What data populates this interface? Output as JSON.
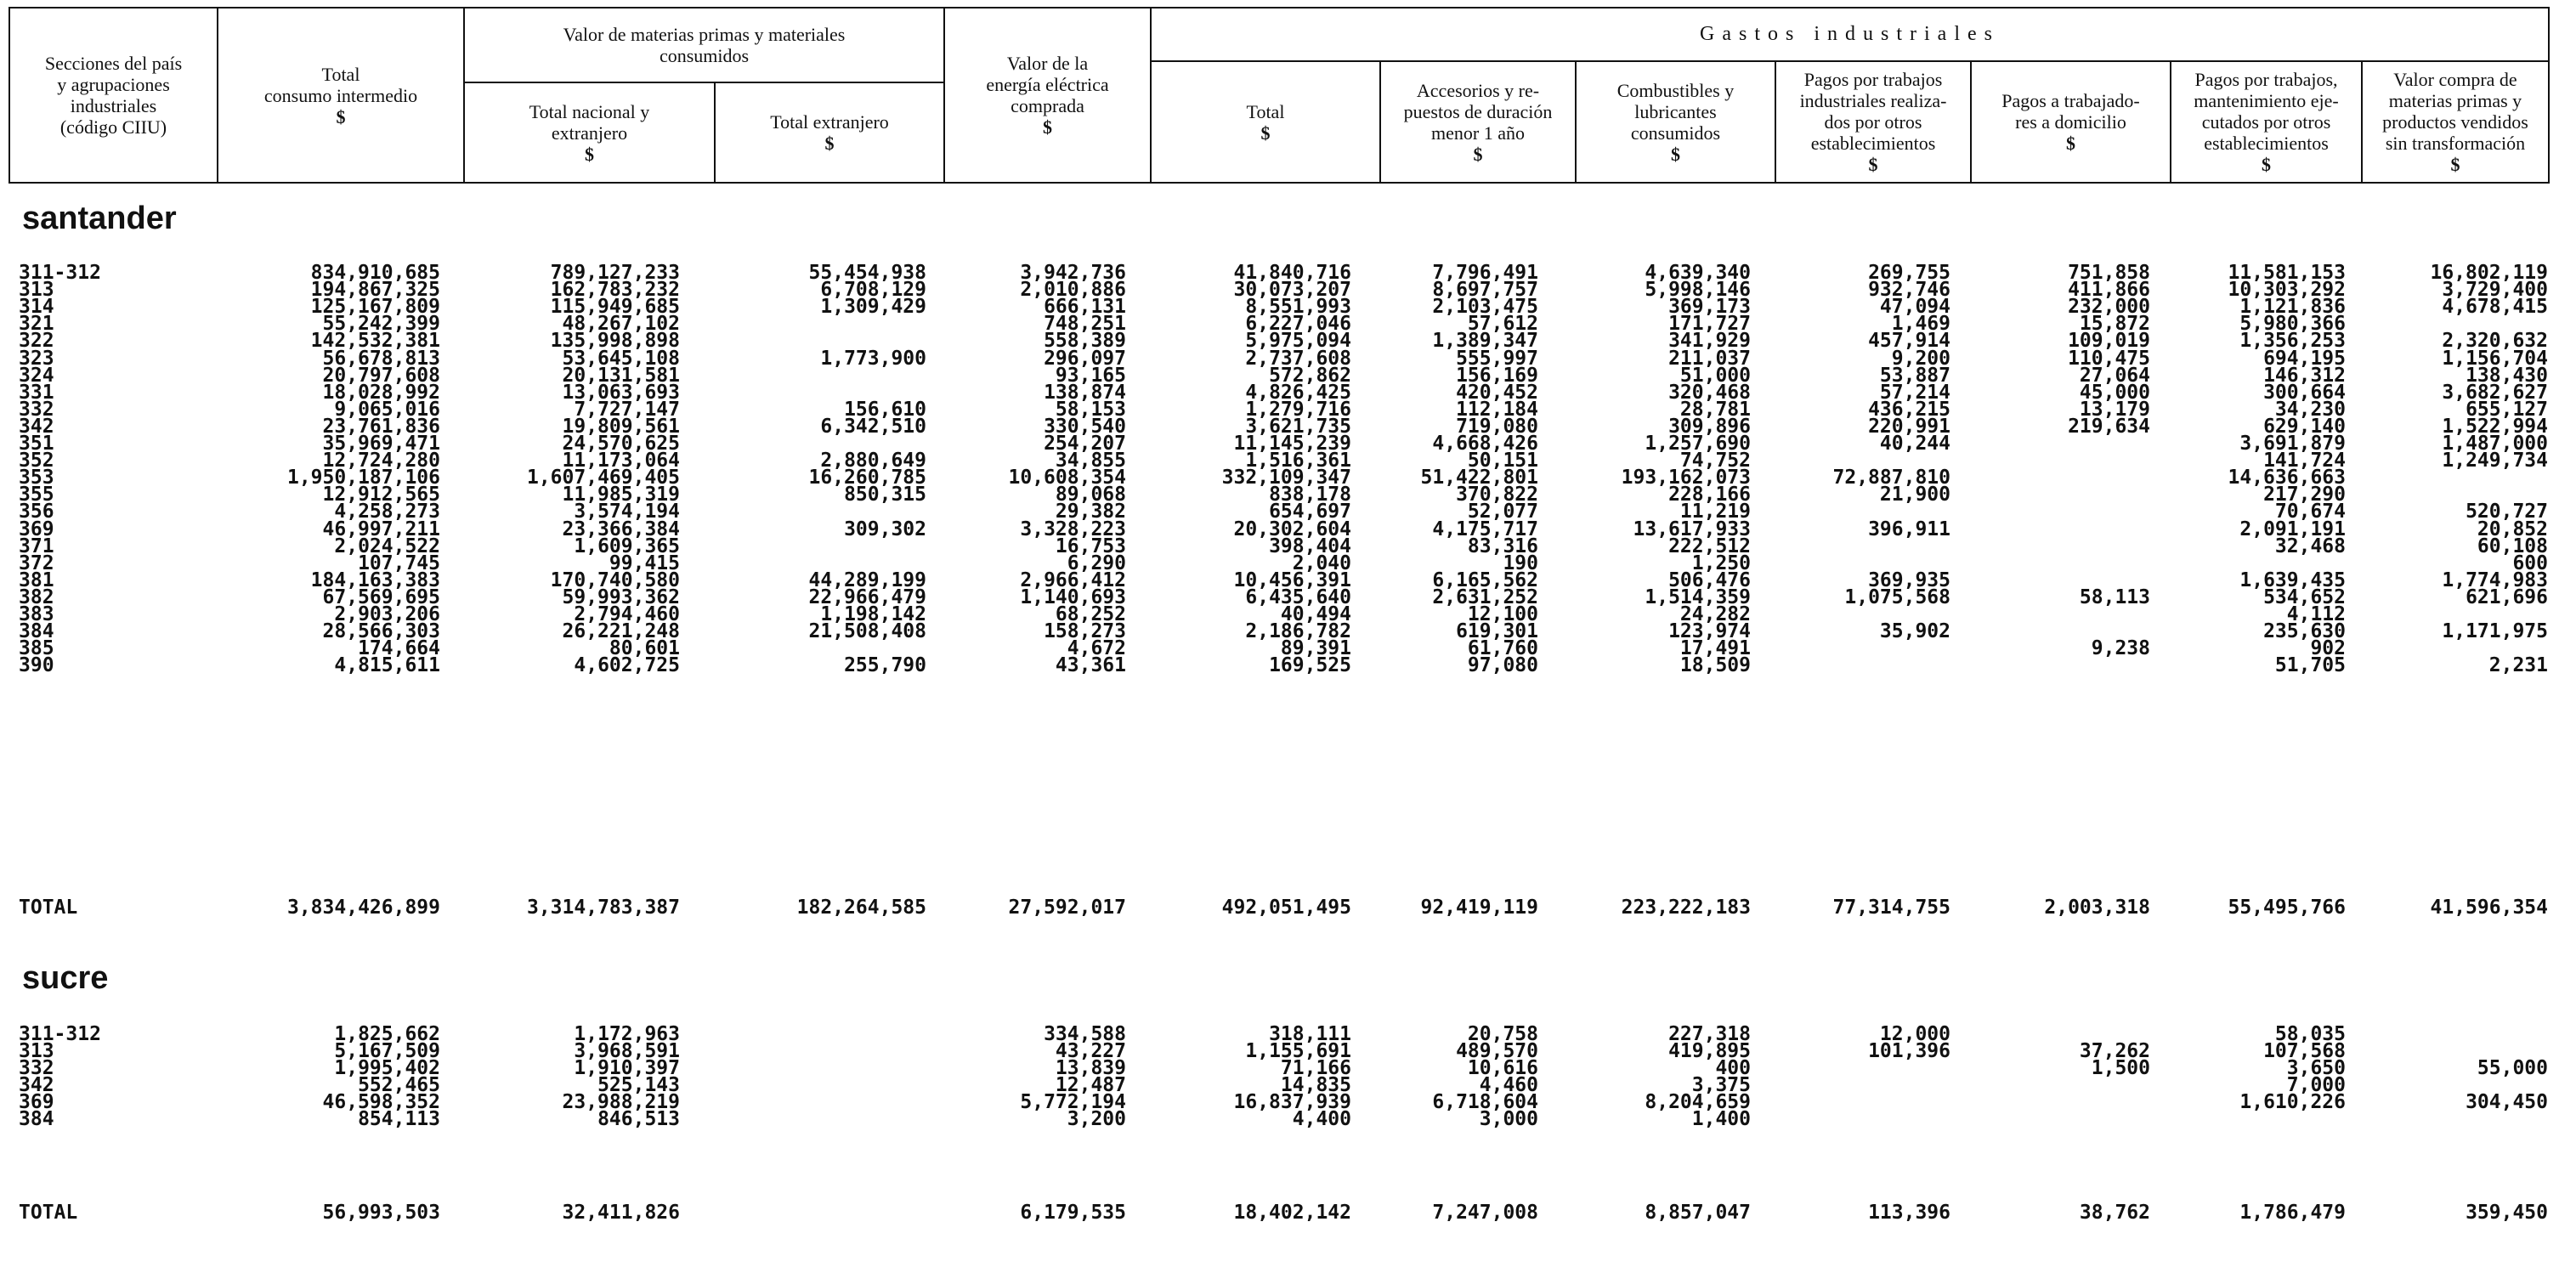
{
  "header": {
    "col_seccion": "Secciones del país\ny agrupaciones\nindustriales\n(código CIIU)",
    "col_total_consumo": "Total\nconsumo intermedio",
    "col_total_consumo_unit": "$",
    "group_materias": "Valor de materias primas y materiales\nconsumidos",
    "col_nacional": "Total nacional y\nextranjero",
    "col_nacional_unit": "$",
    "col_extranjero": "Total extranjero",
    "col_extranjero_unit": "$",
    "col_energia": "Valor de la\nenergía eléctrica\ncomprada",
    "col_energia_unit": "$",
    "group_gastos": "Gastos industriales",
    "col_g_total": "Total",
    "col_g_total_unit": "$",
    "col_accesorios": "Accesorios y re-\npuestos de duración\nmenor 1 año",
    "col_accesorios_unit": "$",
    "col_combustibles": "Combustibles y\nlubricantes\nconsumidos",
    "col_combustibles_unit": "$",
    "col_pagos_trabajos": "Pagos por trabajos\nindustriales realiza-\ndos por otros\nestablecimientos",
    "col_pagos_trabajos_unit": "$",
    "col_pagos_domicilio": "Pagos a trabajado-\nres a domicilio",
    "col_pagos_domicilio_unit": "$",
    "col_pagos_mant": "Pagos por trabajos,\nmantenimiento eje-\ncutados por otros\nestablecimientos",
    "col_pagos_mant_unit": "$",
    "col_valor_compra": "Valor compra de\nmaterias primas y\nproductos vendidos\nsin transformación",
    "col_valor_compra_unit": "$"
  },
  "sections": [
    {
      "name": "santander",
      "rows": [
        {
          "code": "311-312",
          "c1": "834,910,685",
          "c2": "789,127,233",
          "c3": "55,454,938",
          "c4": "3,942,736",
          "c5": "41,840,716",
          "c6": "7,796,491",
          "c7": "4,639,340",
          "c8": "269,755",
          "c9": "751,858",
          "c10": "11,581,153",
          "c11": "16,802,119"
        },
        {
          "code": "313",
          "c1": "194,867,325",
          "c2": "162,783,232",
          "c3": "6,708,129",
          "c4": "2,010,886",
          "c5": "30,073,207",
          "c6": "8,697,757",
          "c7": "5,998,146",
          "c8": "932,746",
          "c9": "411,866",
          "c10": "10,303,292",
          "c11": "3,729,400"
        },
        {
          "code": "314",
          "c1": "125,167,809",
          "c2": "115,949,685",
          "c3": "1,309,429",
          "c4": "666,131",
          "c5": "8,551,993",
          "c6": "2,103,475",
          "c7": "369,173",
          "c8": "47,094",
          "c9": "232,000",
          "c10": "1,121,836",
          "c11": "4,678,415"
        },
        {
          "code": "321",
          "c1": "55,242,399",
          "c2": "48,267,102",
          "c3": "",
          "c4": "748,251",
          "c5": "6,227,046",
          "c6": "57,612",
          "c7": "171,727",
          "c8": "1,469",
          "c9": "15,872",
          "c10": "5,980,366",
          "c11": ""
        },
        {
          "code": "322",
          "c1": "142,532,381",
          "c2": "135,998,898",
          "c3": "",
          "c4": "558,389",
          "c5": "5,975,094",
          "c6": "1,389,347",
          "c7": "341,929",
          "c8": "457,914",
          "c9": "109,019",
          "c10": "1,356,253",
          "c11": "2,320,632"
        },
        {
          "code": "323",
          "c1": "56,678,813",
          "c2": "53,645,108",
          "c3": "1,773,900",
          "c4": "296,097",
          "c5": "2,737,608",
          "c6": "555,997",
          "c7": "211,037",
          "c8": "9,200",
          "c9": "110,475",
          "c10": "694,195",
          "c11": "1,156,704"
        },
        {
          "code": "324",
          "c1": "20,797,608",
          "c2": "20,131,581",
          "c3": "",
          "c4": "93,165",
          "c5": "572,862",
          "c6": "156,169",
          "c7": "51,000",
          "c8": "53,887",
          "c9": "27,064",
          "c10": "146,312",
          "c11": "138,430"
        },
        {
          "code": "331",
          "c1": "18,028,992",
          "c2": "13,063,693",
          "c3": "",
          "c4": "138,874",
          "c5": "4,826,425",
          "c6": "420,452",
          "c7": "320,468",
          "c8": "57,214",
          "c9": "45,000",
          "c10": "300,664",
          "c11": "3,682,627"
        },
        {
          "code": "332",
          "c1": "9,065,016",
          "c2": "7,727,147",
          "c3": "156,610",
          "c4": "58,153",
          "c5": "1,279,716",
          "c6": "112,184",
          "c7": "28,781",
          "c8": "436,215",
          "c9": "13,179",
          "c10": "34,230",
          "c11": "655,127"
        },
        {
          "code": "342",
          "c1": "23,761,836",
          "c2": "19,809,561",
          "c3": "6,342,510",
          "c4": "330,540",
          "c5": "3,621,735",
          "c6": "719,080",
          "c7": "309,896",
          "c8": "220,991",
          "c9": "219,634",
          "c10": "629,140",
          "c11": "1,522,994"
        },
        {
          "code": "351",
          "c1": "35,969,471",
          "c2": "24,570,625",
          "c3": "",
          "c4": "254,207",
          "c5": "11,145,239",
          "c6": "4,668,426",
          "c7": "1,257,690",
          "c8": "40,244",
          "c9": "",
          "c10": "3,691,879",
          "c11": "1,487,000"
        },
        {
          "code": "352",
          "c1": "12,724,280",
          "c2": "11,173,064",
          "c3": "2,880,649",
          "c4": "34,855",
          "c5": "1,516,361",
          "c6": "50,151",
          "c7": "74,752",
          "c8": "",
          "c9": "",
          "c10": "141,724",
          "c11": "1,249,734"
        },
        {
          "code": "353",
          "c1": "1,950,187,106",
          "c2": "1,607,469,405",
          "c3": "16,260,785",
          "c4": "10,608,354",
          "c5": "332,109,347",
          "c6": "51,422,801",
          "c7": "193,162,073",
          "c8": "72,887,810",
          "c9": "",
          "c10": "14,636,663",
          "c11": ""
        },
        {
          "code": "355",
          "c1": "12,912,565",
          "c2": "11,985,319",
          "c3": "850,315",
          "c4": "89,068",
          "c5": "838,178",
          "c6": "370,822",
          "c7": "228,166",
          "c8": "21,900",
          "c9": "",
          "c10": "217,290",
          "c11": ""
        },
        {
          "code": "356",
          "c1": "4,258,273",
          "c2": "3,574,194",
          "c3": "",
          "c4": "29,382",
          "c5": "654,697",
          "c6": "52,077",
          "c7": "11,219",
          "c8": "",
          "c9": "",
          "c10": "70,674",
          "c11": "520,727"
        },
        {
          "code": "369",
          "c1": "46,997,211",
          "c2": "23,366,384",
          "c3": "309,302",
          "c4": "3,328,223",
          "c5": "20,302,604",
          "c6": "4,175,717",
          "c7": "13,617,933",
          "c8": "396,911",
          "c9": "",
          "c10": "2,091,191",
          "c11": "20,852"
        },
        {
          "code": "371",
          "c1": "2,024,522",
          "c2": "1,609,365",
          "c3": "",
          "c4": "16,753",
          "c5": "398,404",
          "c6": "83,316",
          "c7": "222,512",
          "c8": "",
          "c9": "",
          "c10": "32,468",
          "c11": "60,108"
        },
        {
          "code": "372",
          "c1": "107,745",
          "c2": "99,415",
          "c3": "",
          "c4": "6,290",
          "c5": "2,040",
          "c6": "190",
          "c7": "1,250",
          "c8": "",
          "c9": "",
          "c10": "",
          "c11": "600"
        },
        {
          "code": "381",
          "c1": "184,163,383",
          "c2": "170,740,580",
          "c3": "44,289,199",
          "c4": "2,966,412",
          "c5": "10,456,391",
          "c6": "6,165,562",
          "c7": "506,476",
          "c8": "369,935",
          "c9": "",
          "c10": "1,639,435",
          "c11": "1,774,983"
        },
        {
          "code": "382",
          "c1": "67,569,695",
          "c2": "59,993,362",
          "c3": "22,966,479",
          "c4": "1,140,693",
          "c5": "6,435,640",
          "c6": "2,631,252",
          "c7": "1,514,359",
          "c8": "1,075,568",
          "c9": "58,113",
          "c10": "534,652",
          "c11": "621,696"
        },
        {
          "code": "383",
          "c1": "2,903,206",
          "c2": "2,794,460",
          "c3": "1,198,142",
          "c4": "68,252",
          "c5": "40,494",
          "c6": "12,100",
          "c7": "24,282",
          "c8": "",
          "c9": "",
          "c10": "4,112",
          "c11": ""
        },
        {
          "code": "384",
          "c1": "28,566,303",
          "c2": "26,221,248",
          "c3": "21,508,408",
          "c4": "158,273",
          "c5": "2,186,782",
          "c6": "619,301",
          "c7": "123,974",
          "c8": "35,902",
          "c9": "",
          "c10": "235,630",
          "c11": "1,171,975"
        },
        {
          "code": "385",
          "c1": "174,664",
          "c2": "80,601",
          "c3": "",
          "c4": "4,672",
          "c5": "89,391",
          "c6": "61,760",
          "c7": "17,491",
          "c8": "",
          "c9": "9,238",
          "c10": "902",
          "c11": ""
        },
        {
          "code": "390",
          "c1": "4,815,611",
          "c2": "4,602,725",
          "c3": "255,790",
          "c4": "43,361",
          "c5": "169,525",
          "c6": "97,080",
          "c7": "18,509",
          "c8": "",
          "c9": "",
          "c10": "51,705",
          "c11": "2,231"
        }
      ],
      "total": {
        "code": "TOTAL",
        "c1": "3,834,426,899",
        "c2": "3,314,783,387",
        "c3": "182,264,585",
        "c4": "27,592,017",
        "c5": "492,051,495",
        "c6": "92,419,119",
        "c7": "223,222,183",
        "c8": "77,314,755",
        "c9": "2,003,318",
        "c10": "55,495,766",
        "c11": "41,596,354"
      }
    },
    {
      "name": "sucre",
      "rows": [
        {
          "code": "311-312",
          "c1": "1,825,662",
          "c2": "1,172,963",
          "c3": "",
          "c4": "334,588",
          "c5": "318,111",
          "c6": "20,758",
          "c7": "227,318",
          "c8": "12,000",
          "c9": "",
          "c10": "58,035",
          "c11": ""
        },
        {
          "code": "313",
          "c1": "5,167,509",
          "c2": "3,968,591",
          "c3": "",
          "c4": "43,227",
          "c5": "1,155,691",
          "c6": "489,570",
          "c7": "419,895",
          "c8": "101,396",
          "c9": "37,262",
          "c10": "107,568",
          "c11": ""
        },
        {
          "code": "332",
          "c1": "1,995,402",
          "c2": "1,910,397",
          "c3": "",
          "c4": "13,839",
          "c5": "71,166",
          "c6": "10,616",
          "c7": "400",
          "c8": "",
          "c9": "1,500",
          "c10": "3,650",
          "c11": "55,000"
        },
        {
          "code": "342",
          "c1": "552,465",
          "c2": "525,143",
          "c3": "",
          "c4": "12,487",
          "c5": "14,835",
          "c6": "4,460",
          "c7": "3,375",
          "c8": "",
          "c9": "",
          "c10": "7,000",
          "c11": ""
        },
        {
          "code": "369",
          "c1": "46,598,352",
          "c2": "23,988,219",
          "c3": "",
          "c4": "5,772,194",
          "c5": "16,837,939",
          "c6": "6,718,604",
          "c7": "8,204,659",
          "c8": "",
          "c9": "",
          "c10": "1,610,226",
          "c11": "304,450"
        },
        {
          "code": "384",
          "c1": "854,113",
          "c2": "846,513",
          "c3": "",
          "c4": "3,200",
          "c5": "4,400",
          "c6": "3,000",
          "c7": "1,400",
          "c8": "",
          "c9": "",
          "c10": "",
          "c11": ""
        }
      ],
      "total": {
        "code": "TOTAL",
        "c1": "56,993,503",
        "c2": "32,411,826",
        "c3": "",
        "c4": "6,179,535",
        "c5": "18,402,142",
        "c6": "7,247,008",
        "c7": "8,857,047",
        "c8": "113,396",
        "c9": "38,762",
        "c10": "1,786,479",
        "c11": "359,450"
      }
    }
  ]
}
